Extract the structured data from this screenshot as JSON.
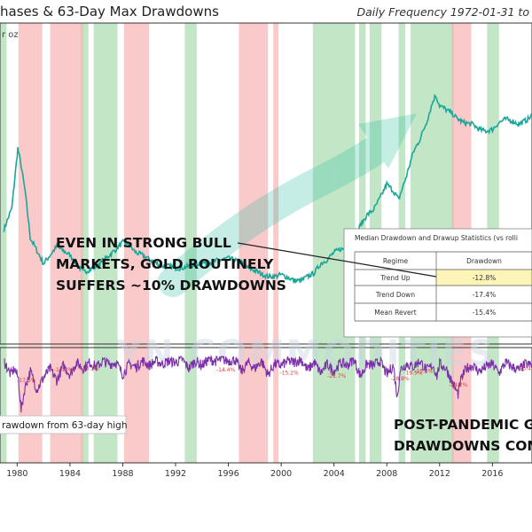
{
  "chart_data": [
    {
      "type": "line",
      "title": "hases & 63-Day Max Drawdowns",
      "subtitle": "Daily Frequency 1972-01-31 to",
      "ylabel": "r oz",
      "x_ticks": [
        "1980",
        "1984",
        "1988",
        "1992",
        "1996",
        "2000",
        "2004",
        "2008",
        "2012",
        "2016"
      ],
      "xlim": [
        1978.7,
        2019.0
      ],
      "series": [
        {
          "color": "#1aa699",
          "x": [
            1979.0,
            1979.6,
            1980.05,
            1980.3,
            1980.6,
            1981.0,
            1981.5,
            1982.0,
            1982.5,
            1983.0,
            1983.5,
            1984.0,
            1984.5,
            1985.0,
            1985.5,
            1986.0,
            1986.5,
            1987.0,
            1987.5,
            1988.0,
            1988.5,
            1989.0,
            1989.5,
            1990.0,
            1990.5,
            1991.0,
            1991.5,
            1992.0,
            1992.5,
            1993.0,
            1993.5,
            1994.0,
            1994.5,
            1995.0,
            1995.5,
            1996.0,
            1996.5,
            1997.0,
            1997.5,
            1998.0,
            1998.5,
            1999.0,
            1999.5,
            2000.0,
            2000.5,
            2001.0,
            2001.5,
            2002.0,
            2002.5,
            2003.0,
            2003.5,
            2004.0,
            2004.5,
            2005.0,
            2005.5,
            2006.0,
            2006.5,
            2007.0,
            2007.5,
            2008.0,
            2008.5,
            2008.9,
            2009.5,
            2010.0,
            2010.5,
            2011.0,
            2011.5,
            2011.7,
            2012.0,
            2012.5,
            2013.0,
            2013.3,
            2013.8,
            2014.5,
            2015.0,
            2015.5,
            2016.0,
            2016.5,
            2017.0,
            2017.5,
            2018.0,
            2018.7,
            2019.0
          ],
          "values": [
            255,
            280,
            350,
            330,
            300,
            245,
            230,
            215,
            225,
            235,
            230,
            225,
            215,
            205,
            208,
            212,
            218,
            225,
            232,
            240,
            236,
            228,
            225,
            220,
            216,
            212,
            212,
            210,
            210,
            212,
            214,
            216,
            216,
            218,
            220,
            221,
            219,
            216,
            210,
            207,
            203,
            200,
            200,
            202,
            199,
            195,
            195,
            200,
            204,
            215,
            220,
            228,
            232,
            232,
            240,
            260,
            272,
            278,
            292,
            308,
            300,
            290,
            318,
            345,
            360,
            380,
            405,
            412,
            400,
            395,
            390,
            385,
            380,
            378,
            372,
            370,
            372,
            380,
            384,
            382,
            378,
            384,
            388
          ]
        }
      ],
      "annotations": [
        "EVEN IN STRONG BULL",
        "MARKETS, GOLD ROUTINELY",
        "SUFFERS ~10% DRAWDOWNS"
      ],
      "watermark": "YN COMMODITIES"
    },
    {
      "type": "line",
      "legend": [
        "rawdown from 63-day high"
      ],
      "series": [
        {
          "name": "rawdown from 63-day high",
          "color": "#7b2fa8",
          "x": [
            1979.0,
            1979.5,
            1979.8,
            1980.1,
            1980.3,
            1980.6,
            1981.0,
            1981.5,
            1982.0,
            1982.5,
            1983.0,
            1983.5,
            1984.0,
            1984.5,
            1985.0,
            1985.5,
            1986.0,
            1986.5,
            1987.0,
            1987.5,
            1988.0,
            1988.5,
            1989.0,
            1989.5,
            1990.0,
            1990.5,
            1991.0,
            1991.5,
            1992.0,
            1992.5,
            1993.0,
            1993.5,
            1994.0,
            1994.5,
            1995.0,
            1995.5,
            1996.0,
            1996.5,
            1997.0,
            1997.5,
            1998.0,
            1998.5,
            1999.0,
            1999.5,
            2000.0,
            2000.5,
            2001.0,
            2001.5,
            2002.0,
            2002.5,
            2003.0,
            2003.5,
            2004.0,
            2004.5,
            2005.0,
            2005.5,
            2006.0,
            2006.5,
            2007.0,
            2007.5,
            2008.0,
            2008.5,
            2008.8,
            2009.0,
            2009.5,
            2010.0,
            2010.5,
            2011.0,
            2011.5,
            2011.8,
            2012.0,
            2012.5,
            2013.0,
            2013.4,
            2013.6,
            2014.0,
            2014.5,
            2015.0,
            2015.5,
            2016.0,
            2016.5,
            2017.0,
            2017.5,
            2018.0,
            2018.5,
            2019.0
          ],
          "values": [
            -3,
            -12,
            -8,
            -15,
            -36,
            -20,
            -10,
            -22,
            -14,
            -8,
            -16,
            -6,
            -12,
            -4,
            -8,
            -4,
            -7,
            -3,
            -5,
            -4,
            -12,
            -5,
            -7,
            -3,
            -6,
            -3,
            -5,
            -3,
            -4,
            -2,
            -8,
            -3,
            -6,
            -2,
            -3,
            -2,
            -3,
            -2,
            -10,
            -4,
            -8,
            -3,
            -12,
            -5,
            -6,
            -3,
            -4,
            -2,
            -9,
            -4,
            -11,
            -5,
            -10,
            -4,
            -6,
            -2,
            -13,
            -5,
            -6,
            -3,
            -12,
            -6,
            -28,
            -9,
            -5,
            -7,
            -3,
            -9,
            -6,
            -13,
            -5,
            -8,
            -18,
            -25,
            -16,
            -8,
            -6,
            -10,
            -7,
            -5,
            -11,
            -4,
            -7,
            -9,
            -5,
            -6
          ]
        }
      ],
      "data_labels": [
        "-17.3%",
        "-13.8%",
        "-13.1%",
        "-14.4%",
        "-15.2%",
        "-21.7%",
        "-28.8%",
        "-19.9%",
        "-15.3%",
        "-24.2%",
        "-13.4%"
      ],
      "annotations": [
        "POST-PANDEMIC G",
        "DRAWDOWNS CON"
      ]
    },
    {
      "type": "table",
      "title": "Median Drawdown and Drawup Statistics (vs rolli",
      "columns": [
        "Regime",
        "Drawdown"
      ],
      "rows": [
        [
          "Trend Up",
          "-12.8%"
        ],
        [
          "Trend Down",
          "-17.4%"
        ],
        [
          "Mean Revert",
          "-15.4%"
        ]
      ],
      "highlight_row": "Trend Up"
    }
  ],
  "regimes": {
    "green": [
      [
        1978.7,
        1979.2
      ],
      [
        1984.8,
        1985.4
      ],
      [
        1985.8,
        1987.6
      ],
      [
        1992.7,
        1993.6
      ],
      [
        2002.4,
        2005.6
      ],
      [
        2005.9,
        2006.4
      ],
      [
        2006.7,
        2007.6
      ],
      [
        2008.9,
        2009.4
      ],
      [
        2009.8,
        2013.1
      ],
      [
        2015.6,
        2016.5
      ]
    ],
    "red": [
      [
        1980.1,
        1981.9
      ],
      [
        1982.5,
        1985.0
      ],
      [
        1988.1,
        1990.0
      ],
      [
        1996.8,
        1999.0
      ],
      [
        1999.4,
        1999.8
      ],
      [
        2012.9,
        2014.4
      ]
    ],
    "colors": {
      "green": "#a8dcae",
      "red": "#f8b4b4"
    }
  }
}
